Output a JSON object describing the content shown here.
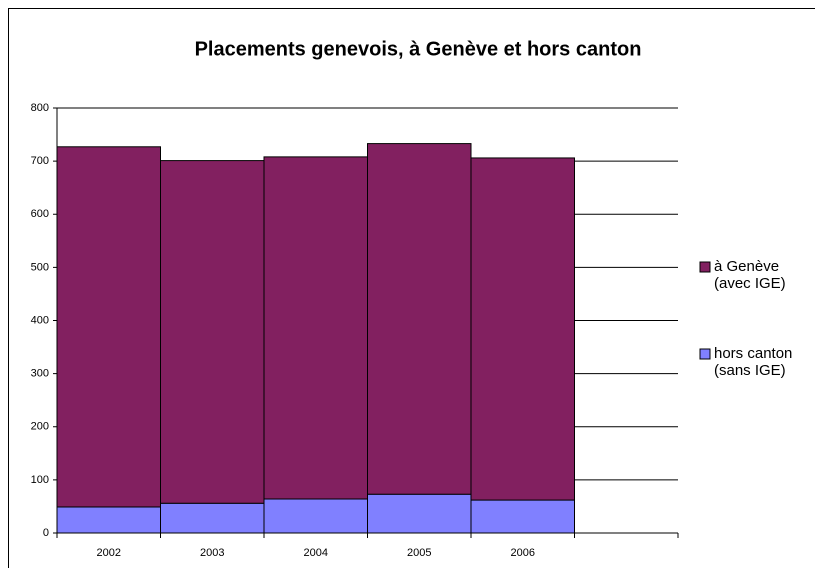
{
  "chart_data": {
    "type": "stacked_bar",
    "title": "Placements genevois, à Genève et hors canton",
    "categories": [
      "2002",
      "2003",
      "2004",
      "2005",
      "2006",
      null
    ],
    "series": [
      {
        "name": "hors canton (sans IGE)",
        "color": "#8080ff",
        "values": [
          49,
          56,
          64,
          73,
          62,
          null
        ]
      },
      {
        "name": "à Genève (avec IGE)",
        "color": "#822060",
        "values": [
          678,
          645,
          644,
          660,
          644,
          null
        ]
      }
    ],
    "ylim": [
      0,
      800
    ],
    "yticks": [
      0,
      100,
      200,
      300,
      400,
      500,
      600,
      700,
      800
    ],
    "grid": true,
    "legend": "right"
  }
}
